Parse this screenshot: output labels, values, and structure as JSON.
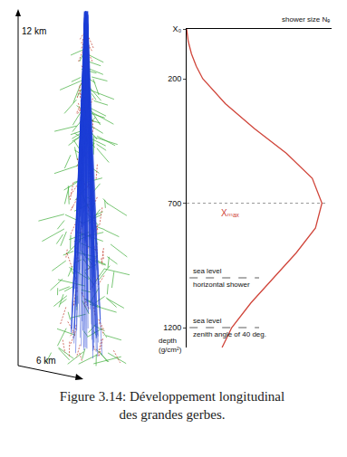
{
  "chart_data": {
    "type": "line",
    "x_title": "shower size Nₑ",
    "y_title": "depth (g/cm²)",
    "depth": [
      0,
      50,
      100,
      150,
      200,
      300,
      400,
      500,
      600,
      700,
      800,
      900,
      1000,
      1100,
      1200,
      1280
    ],
    "values": [
      0,
      1,
      3,
      6,
      10,
      24,
      42,
      62,
      78,
      84,
      80,
      68,
      54,
      40,
      28,
      22
    ],
    "color": "#d0453a",
    "xlim": [
      0,
      90
    ],
    "ylim": [
      1280,
      0
    ],
    "yticks": [
      {
        "value": 0,
        "label": "X₀"
      },
      200,
      700,
      1200
    ],
    "tick_labels": "y",
    "grid": false,
    "annotations": [
      {
        "text": "Xₘₐₓ",
        "depth": 700
      }
    ],
    "levels": [
      {
        "depth": 1000,
        "above": "sea level",
        "below": "horizontal shower"
      },
      {
        "depth": 1200,
        "above": "sea level",
        "below": "zenith angle of 40 deg."
      }
    ]
  },
  "figure": {
    "height_label": "12 km",
    "width_label": "6 km",
    "caption": "Figure 3.14: Développement longitudinal des grandes gerbes."
  }
}
